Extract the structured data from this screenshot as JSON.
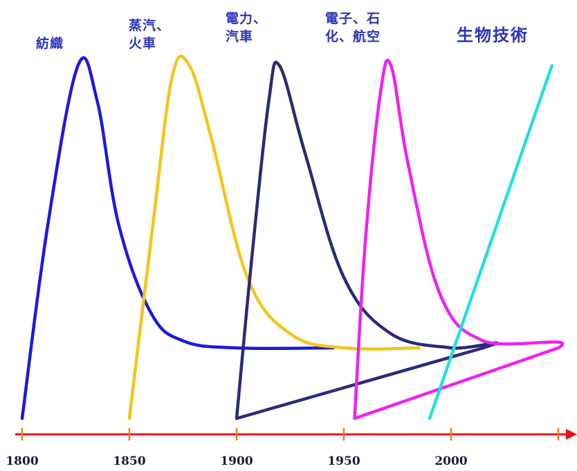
{
  "chart_data": {
    "type": "line",
    "title": "",
    "xlabel": "",
    "ylabel": "",
    "x_ticks": [
      1800,
      1850,
      1900,
      1950,
      2000
    ],
    "xlim": [
      1800,
      2050
    ],
    "series": [
      {
        "name": [
          "紡織"
        ],
        "color": "#1a1adf",
        "points": [
          [
            1800,
            0
          ],
          [
            1812,
            55
          ],
          [
            1826,
            100
          ],
          [
            1835,
            90
          ],
          [
            1845,
            55
          ],
          [
            1860,
            30
          ],
          [
            1875,
            22
          ],
          [
            1900,
            20
          ],
          [
            1945,
            20
          ]
        ]
      },
      {
        "name": [
          "蒸汽、",
          "火車"
        ],
        "color": "#f5c518",
        "points": [
          [
            1850,
            0
          ],
          [
            1861,
            55
          ],
          [
            1870,
            97
          ],
          [
            1878,
            100
          ],
          [
            1888,
            80
          ],
          [
            1905,
            40
          ],
          [
            1925,
            24
          ],
          [
            1950,
            20
          ],
          [
            1985,
            20
          ]
        ]
      },
      {
        "name": [
          "電力、",
          "汽車"
        ],
        "color": "#2a2a7a",
        "points": [
          [
            1900,
            0
          ],
          [
            1907,
            45
          ],
          [
            1915,
            90
          ],
          [
            1920,
            100
          ],
          [
            1932,
            75
          ],
          [
            1950,
            40
          ],
          [
            1972,
            24
          ],
          [
            2000,
            20
          ],
          [
            2015,
            20
          ],
          [
            1900,
            0
          ]
        ]
      },
      {
        "name": [
          "電子、石",
          "化、航空"
        ],
        "color": "#ee22ee",
        "points": [
          [
            1955,
            0
          ],
          [
            1960,
            50
          ],
          [
            1967,
            92
          ],
          [
            1972,
            100
          ],
          [
            1980,
            72
          ],
          [
            1995,
            35
          ],
          [
            2015,
            22
          ],
          [
            2050,
            20
          ],
          [
            1955,
            0
          ]
        ]
      },
      {
        "name": [
          "生物技術"
        ],
        "color": "#22e0e0",
        "points": [
          [
            1990,
            0
          ],
          [
            2047,
            100
          ]
        ]
      }
    ],
    "axis_color": "#ee1111",
    "grid": false,
    "legend": "none"
  }
}
